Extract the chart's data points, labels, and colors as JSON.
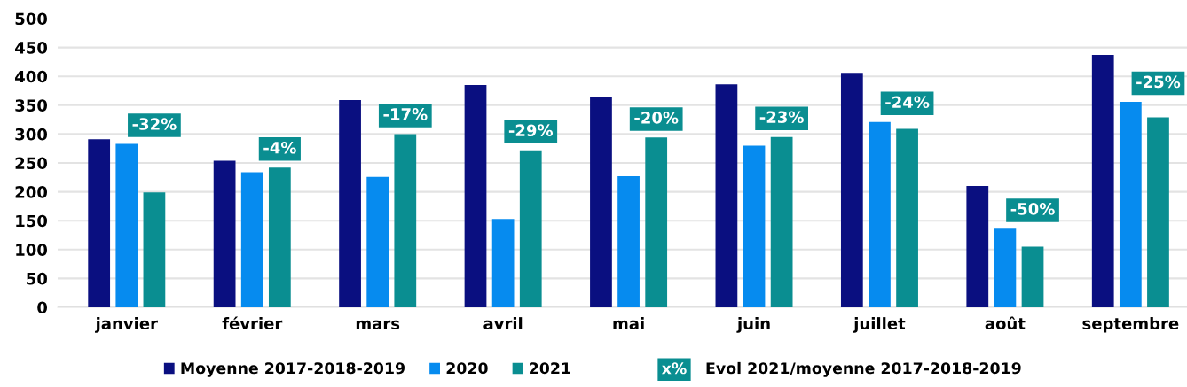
{
  "chart_data": {
    "type": "bar",
    "categories": [
      "janvier",
      "février",
      "mars",
      "avril",
      "mai",
      "juin",
      "juillet",
      "août",
      "septembre"
    ],
    "series": [
      {
        "name": "Moyenne 2017-2018-2019",
        "color": "#0a0f80",
        "values": [
          291,
          254,
          359,
          385,
          365,
          386,
          406,
          210,
          437
        ]
      },
      {
        "name": "2020",
        "color": "#068bef",
        "values": [
          283,
          234,
          226,
          153,
          227,
          280,
          321,
          136,
          356
        ]
      },
      {
        "name": "2021",
        "color": "#0a8e91",
        "values": [
          199,
          242,
          300,
          272,
          294,
          295,
          309,
          105,
          329
        ]
      }
    ],
    "annotations": [
      "-32%",
      "-4%",
      "-17%",
      "-29%",
      "-20%",
      "-23%",
      "-24%",
      "-50%",
      "-25%",
      "x%",
      "Evol 2021/moyenne 2017-2018-2019"
    ],
    "ylim": [
      0,
      500
    ],
    "yticks": [
      0,
      50,
      100,
      150,
      200,
      250,
      300,
      350,
      400,
      450,
      500
    ],
    "grid": "y",
    "legend": "bottom"
  }
}
